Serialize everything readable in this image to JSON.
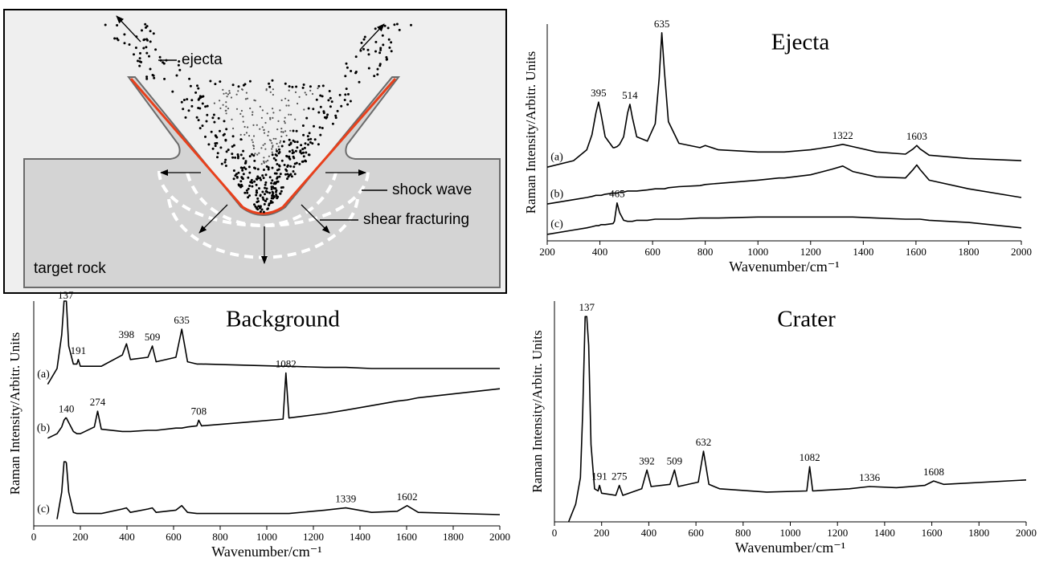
{
  "diagram": {
    "labels": {
      "ejecta": "ejecta",
      "shock_wave": "shock wave",
      "shear_fracturing": "shear fracturing",
      "target_rock": "target rock"
    }
  },
  "chart_data": [
    {
      "type": "line",
      "title": "Ejecta",
      "xlabel": "Wavenumber/cm⁻¹",
      "ylabel": "Raman Intensity/Arbitr. Units",
      "xlim": [
        200,
        2000
      ],
      "xticks": [
        200,
        400,
        600,
        800,
        1000,
        1200,
        1400,
        1600,
        1800,
        2000
      ],
      "ylim": [
        0,
        10
      ],
      "x": [
        200,
        300,
        350,
        370,
        385,
        395,
        405,
        420,
        450,
        455,
        465,
        475,
        490,
        505,
        514,
        523,
        540,
        580,
        610,
        625,
        635,
        645,
        660,
        700,
        780,
        800,
        850,
        1000,
        1080,
        1100,
        1200,
        1280,
        1322,
        1360,
        1450,
        1560,
        1590,
        1603,
        1615,
        1650,
        1800,
        2000
      ],
      "series": [
        {
          "name": "(a)",
          "color": "#000000",
          "peaks": [
            395,
            514,
            635,
            1322,
            1603
          ],
          "values": [
            3.4,
            3.7,
            4.2,
            4.9,
            5.9,
            6.4,
            5.8,
            4.8,
            4.3,
            4.3,
            4.35,
            4.45,
            4.8,
            5.9,
            6.3,
            5.7,
            4.8,
            4.6,
            5.4,
            7.5,
            9.6,
            7.8,
            5.5,
            4.5,
            4.3,
            4.4,
            4.2,
            4.1,
            4.1,
            4.1,
            4.2,
            4.35,
            4.45,
            4.35,
            4.1,
            4.0,
            4.25,
            4.4,
            4.25,
            3.95,
            3.8,
            3.7
          ]
        },
        {
          "name": "(b)",
          "color": "#000000",
          "peaks": [],
          "values": [
            1.7,
            1.9,
            2.0,
            2.05,
            2.1,
            2.1,
            2.1,
            2.15,
            2.2,
            2.2,
            2.2,
            2.25,
            2.25,
            2.3,
            2.3,
            2.3,
            2.3,
            2.35,
            2.4,
            2.4,
            2.4,
            2.4,
            2.45,
            2.5,
            2.55,
            2.6,
            2.65,
            2.8,
            2.9,
            2.9,
            3.05,
            3.3,
            3.45,
            3.2,
            2.95,
            2.9,
            3.3,
            3.5,
            3.3,
            2.8,
            2.4,
            2.0
          ]
        },
        {
          "name": "(c)",
          "color": "#000000",
          "peaks": [
            465
          ],
          "values": [
            0.3,
            0.5,
            0.6,
            0.65,
            0.7,
            0.7,
            0.75,
            0.75,
            0.8,
            0.9,
            1.75,
            1.3,
            0.95,
            0.9,
            0.9,
            0.9,
            0.95,
            0.95,
            1.0,
            1.0,
            1.0,
            1.0,
            1.0,
            1.0,
            1.05,
            1.05,
            1.05,
            1.1,
            1.1,
            1.1,
            1.1,
            1.1,
            1.1,
            1.1,
            1.05,
            1.0,
            1.0,
            1.0,
            1.0,
            0.95,
            0.85,
            0.6
          ]
        }
      ]
    },
    {
      "type": "line",
      "title": "Background",
      "xlabel": "Wavenumber/cm⁻¹",
      "ylabel": "Raman Intensity/Arbitr. Units",
      "xlim": [
        0,
        2000
      ],
      "xticks": [
        0,
        200,
        400,
        600,
        800,
        1000,
        1200,
        1400,
        1600,
        1800,
        2000
      ],
      "ylim": [
        0,
        10
      ],
      "x": [
        60,
        100,
        120,
        130,
        137,
        140,
        150,
        170,
        185,
        191,
        200,
        260,
        274,
        290,
        380,
        398,
        415,
        490,
        509,
        525,
        610,
        635,
        660,
        700,
        708,
        720,
        900,
        1070,
        1082,
        1095,
        1250,
        1339,
        1450,
        1560,
        1602,
        1650,
        2000
      ],
      "series": [
        {
          "name": "(a)",
          "color": "#000000",
          "peaks": [
            137,
            191,
            398,
            509,
            635
          ],
          "values": [
            6.3,
            7.0,
            8.5,
            10,
            10,
            10,
            8.0,
            7.2,
            7.2,
            7.4,
            7.1,
            7.1,
            7.1,
            7.1,
            7.6,
            8.1,
            7.4,
            7.5,
            8.0,
            7.3,
            7.5,
            8.75,
            7.3,
            7.2,
            7.2,
            7.2,
            7.15,
            7.1,
            7.1,
            7.1,
            7.05,
            7.05,
            7.0,
            7.0,
            7.0,
            7.0,
            7.0
          ]
        },
        {
          "name": "(b)",
          "color": "#000000",
          "peaks": [
            140,
            274,
            708,
            1082
          ],
          "values": [
            3.9,
            4.1,
            4.4,
            4.7,
            4.8,
            4.8,
            4.6,
            4.2,
            4.1,
            4.1,
            4.1,
            4.4,
            5.1,
            4.3,
            4.2,
            4.2,
            4.2,
            4.25,
            4.25,
            4.25,
            4.35,
            4.35,
            4.4,
            4.45,
            4.7,
            4.45,
            4.6,
            4.75,
            6.8,
            4.8,
            5.0,
            5.15,
            5.35,
            5.55,
            5.6,
            5.7,
            6.1
          ]
        },
        {
          "name": "(c)",
          "color": "#000000",
          "peaks": [
            1339,
            1602
          ],
          "values": [
            null,
            0.3,
            1.5,
            2.85,
            2.85,
            2.8,
            1.5,
            0.6,
            0.55,
            0.55,
            0.55,
            0.55,
            0.55,
            0.55,
            0.75,
            0.8,
            0.6,
            0.75,
            0.8,
            0.6,
            0.7,
            0.9,
            0.6,
            0.55,
            0.55,
            0.55,
            0.55,
            0.55,
            0.55,
            0.55,
            0.7,
            0.8,
            0.6,
            0.65,
            0.9,
            0.6,
            0.5
          ]
        }
      ]
    },
    {
      "type": "line",
      "title": "Crater",
      "xlabel": "Wavenumber/cm⁻¹",
      "ylabel": "Raman Intensity/Arbitr. Units",
      "xlim": [
        0,
        2000
      ],
      "xticks": [
        0,
        200,
        400,
        600,
        800,
        1000,
        1200,
        1400,
        1600,
        1800,
        2000
      ],
      "ylim": [
        0,
        10
      ],
      "x": [
        60,
        90,
        110,
        120,
        130,
        137,
        145,
        155,
        170,
        185,
        191,
        200,
        260,
        275,
        290,
        370,
        392,
        410,
        490,
        509,
        525,
        610,
        632,
        655,
        700,
        900,
        1070,
        1082,
        1095,
        1250,
        1336,
        1450,
        1570,
        1608,
        1650,
        2000
      ],
      "series": [
        {
          "color": "#000000",
          "peaks": [
            137,
            191,
            275,
            392,
            509,
            632,
            1082,
            1336,
            1608
          ],
          "values": [
            0,
            0.8,
            2.0,
            5.0,
            9.3,
            9.3,
            8.0,
            3.5,
            1.5,
            1.4,
            1.65,
            1.3,
            1.2,
            1.65,
            1.2,
            1.5,
            2.35,
            1.6,
            1.7,
            2.35,
            1.6,
            1.8,
            3.2,
            1.7,
            1.5,
            1.35,
            1.4,
            2.5,
            1.4,
            1.5,
            1.6,
            1.55,
            1.65,
            1.85,
            1.7,
            1.9
          ]
        }
      ]
    }
  ]
}
